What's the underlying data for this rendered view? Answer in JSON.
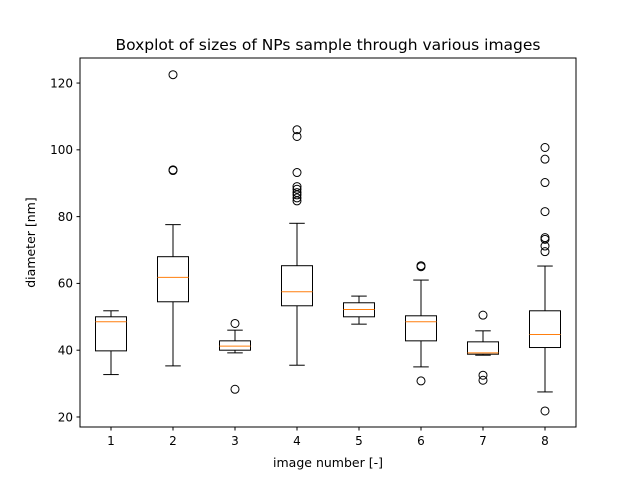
{
  "chart_data": {
    "type": "boxplot",
    "title": "Boxplot of sizes of NPs sample through various images",
    "xlabel": "image number [-]",
    "ylabel": "diameter [nm]",
    "ylim": [
      17,
      127.5
    ],
    "xlim": [
      0.5,
      8.5
    ],
    "yticks": [
      20,
      40,
      60,
      80,
      100,
      120
    ],
    "grid": false,
    "colors": {
      "box": "#000000",
      "median": "#ff7f0e",
      "flier": "#000000"
    },
    "categories": [
      "1",
      "2",
      "3",
      "4",
      "5",
      "6",
      "7",
      "8"
    ],
    "boxes": [
      {
        "label": "1",
        "whislo": 32.7,
        "q1": 39.8,
        "med": 48.5,
        "q3": 50.0,
        "whishi": 51.8,
        "fliers": []
      },
      {
        "label": "2",
        "whislo": 35.3,
        "q1": 54.5,
        "med": 61.8,
        "q3": 68.0,
        "whishi": 77.6,
        "fliers": [
          93.8,
          94.0,
          122.5
        ]
      },
      {
        "label": "3",
        "whislo": 39.2,
        "q1": 40.0,
        "med": 41.2,
        "q3": 42.8,
        "whishi": 46.0,
        "fliers": [
          28.3,
          48.0
        ]
      },
      {
        "label": "4",
        "whislo": 35.5,
        "q1": 53.3,
        "med": 57.5,
        "q3": 65.3,
        "whishi": 78.0,
        "fliers": [
          84.7,
          85.6,
          86.5,
          87.2,
          88.2,
          89.0,
          93.2,
          104.0,
          106.0
        ]
      },
      {
        "label": "5",
        "whislo": 47.8,
        "q1": 50.0,
        "med": 52.2,
        "q3": 54.2,
        "whishi": 56.2,
        "fliers": []
      },
      {
        "label": "6",
        "whislo": 35.0,
        "q1": 42.8,
        "med": 48.5,
        "q3": 50.3,
        "whishi": 61.0,
        "fliers": [
          30.8,
          65.0,
          65.3
        ]
      },
      {
        "label": "7",
        "whislo": 38.5,
        "q1": 38.8,
        "med": 39.2,
        "q3": 42.5,
        "whishi": 45.8,
        "fliers": [
          31.0,
          32.5,
          50.5
        ]
      },
      {
        "label": "8",
        "whislo": 27.5,
        "q1": 40.8,
        "med": 44.7,
        "q3": 51.8,
        "whishi": 65.2,
        "fliers": [
          21.8,
          69.5,
          71.2,
          73.2,
          73.7,
          81.5,
          90.2,
          97.2,
          100.7
        ]
      }
    ]
  }
}
